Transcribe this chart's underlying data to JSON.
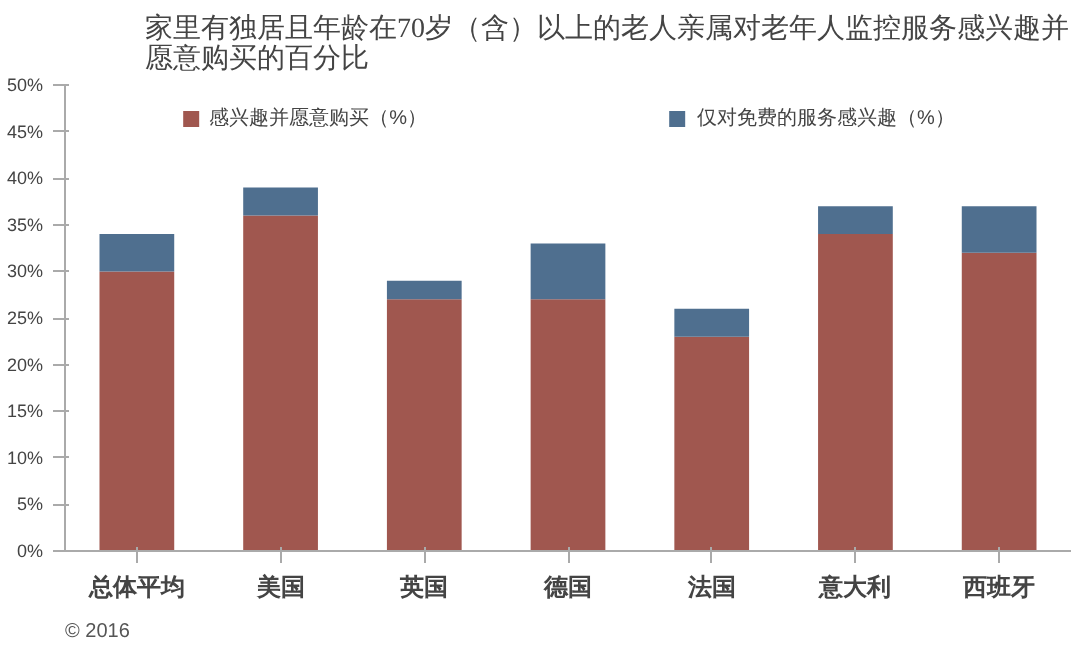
{
  "chart_data": {
    "type": "bar",
    "title": "家里有独居且年龄在70岁（含）以上的老人亲属对老年人监控服务感兴趣并愿意购买的百分比",
    "categories": [
      "总体平均",
      "美国",
      "英国",
      "德国",
      "法国",
      "意大利",
      "西班牙"
    ],
    "stacked": true,
    "series": [
      {
        "name": "感兴趣并愿意购买（%）",
        "color": "#a0574f",
        "values": [
          30,
          36,
          27,
          27,
          23,
          34,
          32
        ]
      },
      {
        "name": "仅对免费的服务感兴趣（%）",
        "color": "#4f6f8f",
        "values": [
          4,
          3,
          2,
          6,
          3,
          3,
          5
        ]
      }
    ],
    "ylim": [
      0,
      50
    ],
    "yticks": [
      {
        "value": 0,
        "label": "0%"
      },
      {
        "value": 5,
        "label": "5%"
      },
      {
        "value": 10,
        "label": "10%"
      },
      {
        "value": 15,
        "label": "15%"
      },
      {
        "value": 20,
        "label": "20%"
      },
      {
        "value": 25,
        "label": "25%"
      },
      {
        "value": 30,
        "label": "30%"
      },
      {
        "value": 35,
        "label": "35%"
      },
      {
        "value": 40,
        "label": "40%"
      },
      {
        "value": 45,
        "label": "45%"
      },
      {
        "value": 50,
        "label": "50%"
      }
    ],
    "legend": "top",
    "grid": false,
    "annotations": [
      "© 2016"
    ]
  }
}
